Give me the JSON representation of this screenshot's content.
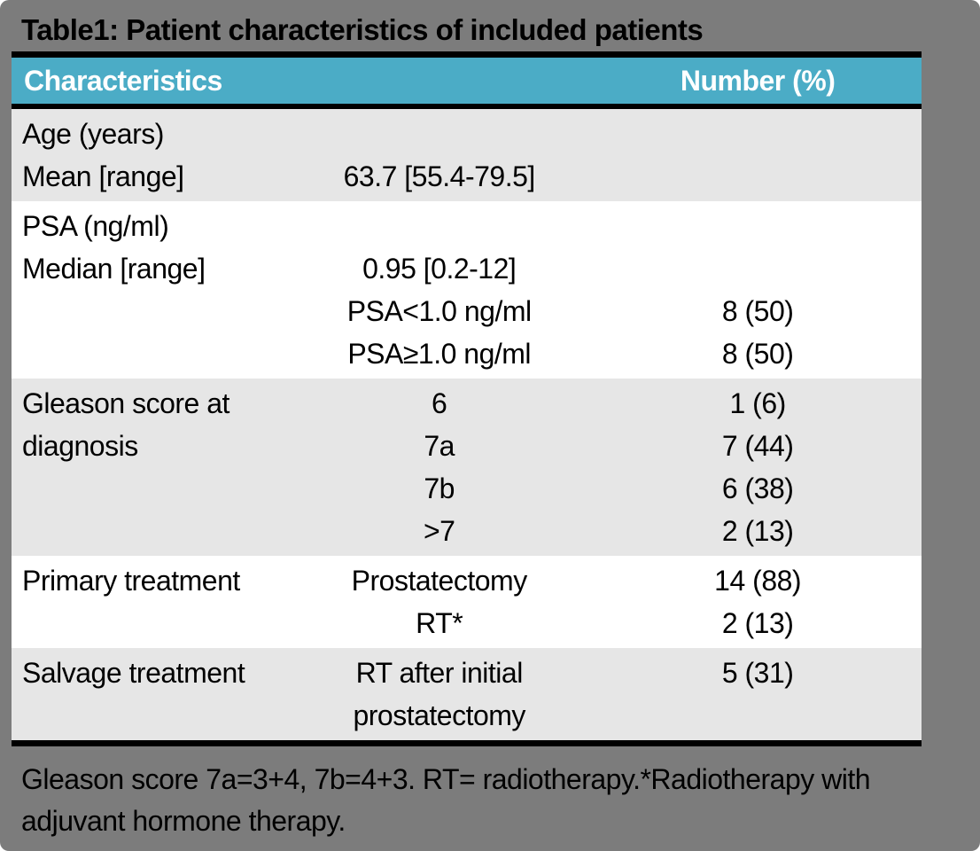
{
  "title": "Table1: Patient characteristics of included patients",
  "colors": {
    "page_background": "#7C7C7C",
    "header_background": "#4BACC6",
    "header_text": "#FFFFFF",
    "band_gray": "#E6E6E6",
    "band_white": "#FFFFFF",
    "rule_black": "#000000"
  },
  "header": {
    "characteristics": "Characteristics",
    "number": "Number (%)"
  },
  "rows": [
    {
      "name": "age",
      "lines": [
        {
          "label": "Age (years)",
          "mid": "",
          "num": ""
        },
        {
          "label": "Mean [range]",
          "mid": "63.7 [55.4-79.5]",
          "num": ""
        }
      ]
    },
    {
      "name": "psa",
      "lines": [
        {
          "label": "PSA (ng/ml)",
          "mid": "",
          "num": ""
        },
        {
          "label": "Median [range]",
          "mid": "0.95 [0.2-12]",
          "num": ""
        },
        {
          "label": "",
          "mid": "PSA<1.0 ng/ml",
          "num": "8 (50)"
        },
        {
          "label": "",
          "mid": "PSA≥1.0 ng/ml",
          "num": "8 (50)"
        }
      ]
    },
    {
      "name": "gleason",
      "lines": [
        {
          "label": "Gleason score at",
          "mid": "6",
          "num": "1 (6)"
        },
        {
          "label": "diagnosis",
          "mid": "7a",
          "num": "7 (44)"
        },
        {
          "label": "",
          "mid": "7b",
          "num": "6 (38)"
        },
        {
          "label": "",
          "mid": ">7",
          "num": "2 (13)"
        }
      ]
    },
    {
      "name": "primary-treatment",
      "lines": [
        {
          "label": "Primary treatment",
          "mid": "Prostatectomy",
          "num": "14 (88)"
        },
        {
          "label": "",
          "mid": "RT*",
          "num": "2 (13)"
        }
      ]
    },
    {
      "name": "salvage-treatment",
      "lines": [
        {
          "label": "Salvage treatment",
          "mid": "RT after initial",
          "num": "5 (31)"
        },
        {
          "label": "",
          "mid": "prostatectomy",
          "num": ""
        }
      ]
    }
  ],
  "footnote": "Gleason score 7a=3+4, 7b=4+3. RT= radiotherapy.*Radiotherapy with\nadjuvant hormone therapy."
}
